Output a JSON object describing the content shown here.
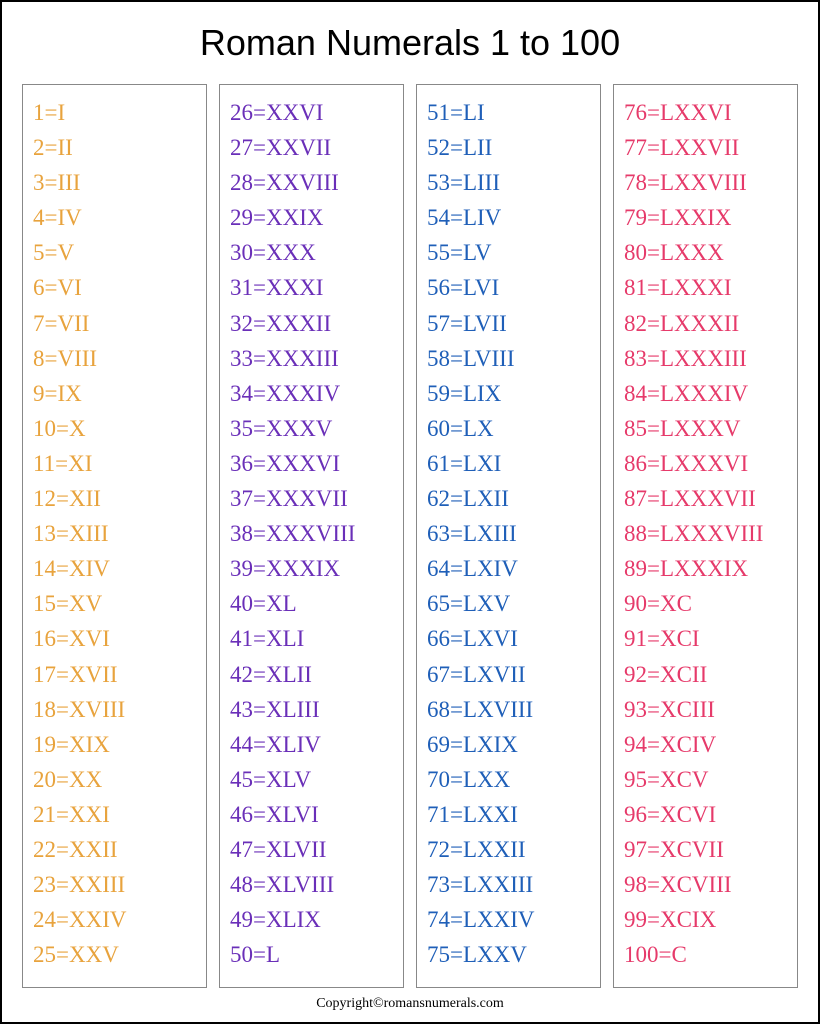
{
  "title": "Roman Numerals 1 to 100",
  "copyright": "Copyright©romansnumerals.com",
  "colors": {
    "col0": "#e8a33d",
    "col1": "#6a2fb8",
    "col2": "#1f5fb8",
    "col3": "#e63a6a",
    "border": "#888888",
    "page_border": "#000000",
    "background": "#ffffff"
  },
  "typography": {
    "title_fontsize": 36,
    "entry_fontsize": 23,
    "copyright_fontsize": 14,
    "title_font": "Comic Sans MS",
    "entry_font": "Georgia"
  },
  "columns": [
    {
      "color": "#e8a33d",
      "entries": [
        "1=I",
        "2=II",
        "3=III",
        "4=IV",
        "5=V",
        "6=VI",
        "7=VII",
        "8=VIII",
        "9=IX",
        "10=X",
        "11=XI",
        "12=XII",
        "13=XIII",
        "14=XIV",
        "15=XV",
        "16=XVI",
        "17=XVII",
        "18=XVIII",
        "19=XIX",
        "20=XX",
        "21=XXI",
        "22=XXII",
        "23=XXIII",
        "24=XXIV",
        "25=XXV"
      ]
    },
    {
      "color": "#6a2fb8",
      "entries": [
        "26=XXVI",
        "27=XXVII",
        "28=XXVIII",
        "29=XXIX",
        "30=XXX",
        "31=XXXI",
        "32=XXXII",
        "33=XXXIII",
        "34=XXXIV",
        "35=XXXV",
        "36=XXXVI",
        "37=XXXVII",
        "38=XXXVIII",
        "39=XXXIX",
        "40=XL",
        "41=XLI",
        "42=XLII",
        "43=XLIII",
        "44=XLIV",
        "45=XLV",
        "46=XLVI",
        "47=XLVII",
        "48=XLVIII",
        "49=XLIX",
        "50=L"
      ]
    },
    {
      "color": "#1f5fb8",
      "entries": [
        "51=LI",
        "52=LII",
        "53=LIII",
        "54=LIV",
        "55=LV",
        "56=LVI",
        "57=LVII",
        "58=LVIII",
        "59=LIX",
        "60=LX",
        "61=LXI",
        "62=LXII",
        "63=LXIII",
        "64=LXIV",
        "65=LXV",
        "66=LXVI",
        "67=LXVII",
        "68=LXVIII",
        "69=LXIX",
        "70=LXX",
        "71=LXXI",
        "72=LXXII",
        "73=LXXIII",
        "74=LXXIV",
        "75=LXXV"
      ]
    },
    {
      "color": "#e63a6a",
      "entries": [
        "76=LXXVI",
        "77=LXXVII",
        "78=LXXVIII",
        "79=LXXIX",
        "80=LXXX",
        "81=LXXXI",
        "82=LXXXII",
        "83=LXXXIII",
        "84=LXXXIV",
        "85=LXXXV",
        "86=LXXXVI",
        "87=LXXXVII",
        "88=LXXXVIII",
        "89=LXXXIX",
        "90=XC",
        "91=XCI",
        "92=XCII",
        "93=XCIII",
        "94=XCIV",
        "95=XCV",
        "96=XCVI",
        "97=XCVII",
        "98=XCVIII",
        "99=XCIX",
        "100=C"
      ]
    }
  ]
}
